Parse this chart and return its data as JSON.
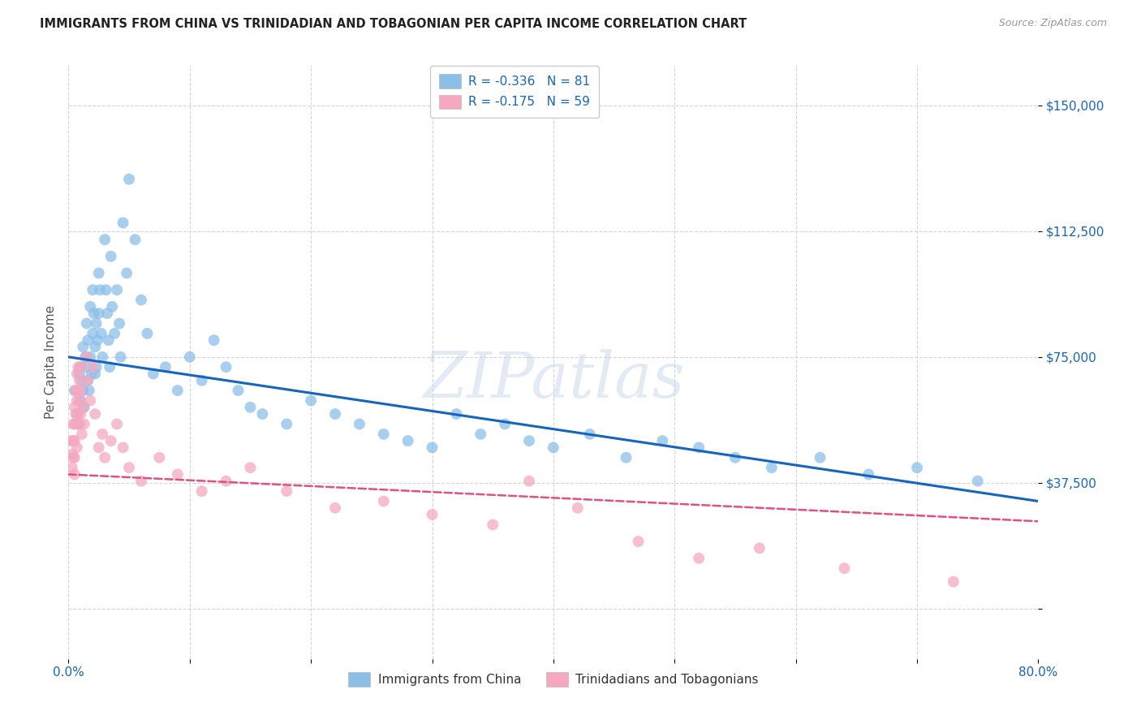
{
  "title": "IMMIGRANTS FROM CHINA VS TRINIDADIAN AND TOBAGONIAN PER CAPITA INCOME CORRELATION CHART",
  "source": "Source: ZipAtlas.com",
  "ylabel": "Per Capita Income",
  "yticks": [
    0,
    37500,
    75000,
    112500,
    150000
  ],
  "ytick_labels": [
    "",
    "$37,500",
    "$75,000",
    "$112,500",
    "$150,000"
  ],
  "xlim": [
    0.0,
    0.8
  ],
  "ylim": [
    -15000,
    162000
  ],
  "legend_entry1": "R = -0.336   N = 81",
  "legend_entry2": "R = -0.175   N = 59",
  "legend_label1": "Immigrants from China",
  "legend_label2": "Trinidadians and Tobagonians",
  "watermark": "ZIPatlas",
  "blue_line_x0": 0.0,
  "blue_line_y0": 75000,
  "blue_line_x1": 0.8,
  "blue_line_y1": 32000,
  "pink_line_x0": 0.0,
  "pink_line_y0": 40000,
  "pink_line_x1": 0.8,
  "pink_line_y1": 26000,
  "blue_scatter_x": [
    0.005,
    0.007,
    0.008,
    0.009,
    0.01,
    0.01,
    0.011,
    0.012,
    0.012,
    0.013,
    0.014,
    0.015,
    0.015,
    0.016,
    0.016,
    0.017,
    0.018,
    0.018,
    0.019,
    0.02,
    0.02,
    0.021,
    0.022,
    0.022,
    0.023,
    0.023,
    0.024,
    0.025,
    0.025,
    0.026,
    0.027,
    0.028,
    0.03,
    0.031,
    0.032,
    0.033,
    0.034,
    0.035,
    0.036,
    0.038,
    0.04,
    0.042,
    0.043,
    0.045,
    0.048,
    0.05,
    0.055,
    0.06,
    0.065,
    0.07,
    0.08,
    0.09,
    0.1,
    0.11,
    0.12,
    0.13,
    0.14,
    0.15,
    0.16,
    0.18,
    0.2,
    0.22,
    0.24,
    0.26,
    0.28,
    0.3,
    0.32,
    0.34,
    0.36,
    0.38,
    0.4,
    0.43,
    0.46,
    0.49,
    0.52,
    0.55,
    0.58,
    0.62,
    0.66,
    0.7,
    0.75
  ],
  "blue_scatter_y": [
    65000,
    58000,
    55000,
    70000,
    72000,
    62000,
    68000,
    78000,
    65000,
    60000,
    75000,
    85000,
    72000,
    80000,
    68000,
    65000,
    90000,
    75000,
    70000,
    95000,
    82000,
    88000,
    78000,
    70000,
    85000,
    72000,
    80000,
    100000,
    88000,
    95000,
    82000,
    75000,
    110000,
    95000,
    88000,
    80000,
    72000,
    105000,
    90000,
    82000,
    95000,
    85000,
    75000,
    115000,
    100000,
    128000,
    110000,
    92000,
    82000,
    70000,
    72000,
    65000,
    75000,
    68000,
    80000,
    72000,
    65000,
    60000,
    58000,
    55000,
    62000,
    58000,
    55000,
    52000,
    50000,
    48000,
    58000,
    52000,
    55000,
    50000,
    48000,
    52000,
    45000,
    50000,
    48000,
    45000,
    42000,
    45000,
    40000,
    42000,
    38000
  ],
  "pink_scatter_x": [
    0.002,
    0.003,
    0.003,
    0.004,
    0.004,
    0.004,
    0.005,
    0.005,
    0.005,
    0.005,
    0.005,
    0.006,
    0.006,
    0.007,
    0.007,
    0.007,
    0.007,
    0.008,
    0.008,
    0.008,
    0.009,
    0.009,
    0.009,
    0.01,
    0.01,
    0.01,
    0.011,
    0.012,
    0.013,
    0.015,
    0.016,
    0.018,
    0.02,
    0.022,
    0.025,
    0.028,
    0.03,
    0.035,
    0.04,
    0.045,
    0.05,
    0.06,
    0.075,
    0.09,
    0.11,
    0.13,
    0.15,
    0.18,
    0.22,
    0.26,
    0.3,
    0.35,
    0.38,
    0.42,
    0.47,
    0.52,
    0.57,
    0.64,
    0.73
  ],
  "pink_scatter_y": [
    50000,
    46000,
    42000,
    55000,
    50000,
    45000,
    60000,
    55000,
    50000,
    45000,
    40000,
    65000,
    58000,
    70000,
    62000,
    55000,
    48000,
    72000,
    65000,
    58000,
    68000,
    62000,
    55000,
    72000,
    65000,
    58000,
    52000,
    60000,
    55000,
    75000,
    68000,
    62000,
    72000,
    58000,
    48000,
    52000,
    45000,
    50000,
    55000,
    48000,
    42000,
    38000,
    45000,
    40000,
    35000,
    38000,
    42000,
    35000,
    30000,
    32000,
    28000,
    25000,
    38000,
    30000,
    20000,
    15000,
    18000,
    12000,
    8000
  ],
  "blue_color": "#8bbfe8",
  "pink_color": "#f5a8c0",
  "blue_line_color": "#1565c0",
  "pink_line_color": "#e05080",
  "grid_color": "#d5d5d5",
  "title_color": "#222222",
  "axis_label_color": "#555555",
  "ytick_color": "#1565c0",
  "xtick_color": "#1565c0",
  "bg_color": "#ffffff"
}
